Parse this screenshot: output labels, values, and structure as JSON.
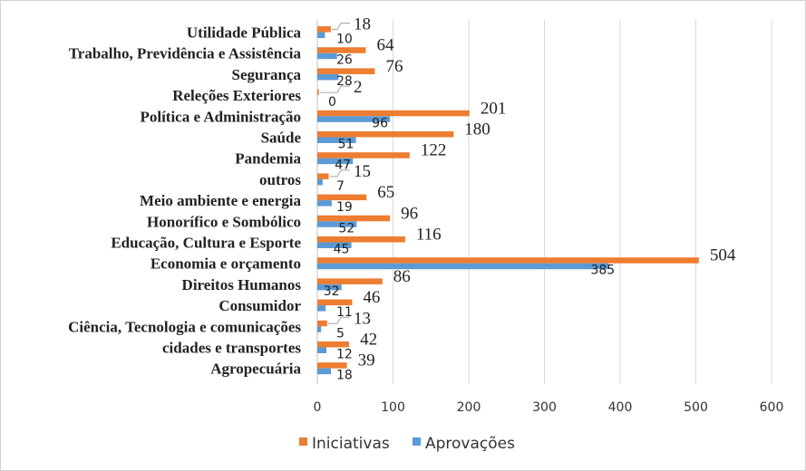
{
  "chart_data": {
    "type": "bar",
    "orientation": "horizontal",
    "categories": [
      "Utilidade Pública",
      "Trabalho, Previdência e Assistência",
      "Segurança",
      "Releções Exteriores",
      "Política e Administração",
      "Saúde",
      "Pandemia",
      "outros",
      "Meio ambiente e energia",
      "Honorífico e Sombólico",
      "Educação, Cultura e Esporte",
      "Economia e orçamento",
      "Direitos Humanos",
      "Consumidor",
      "Ciência, Tecnologia e comunicações",
      "cidades e transportes",
      "Agropecuária"
    ],
    "series": [
      {
        "name": "Iniciativas",
        "color": "#ED7D31",
        "values": [
          18,
          64,
          76,
          2,
          201,
          180,
          122,
          15,
          65,
          96,
          116,
          504,
          86,
          46,
          13,
          42,
          39
        ]
      },
      {
        "name": "Aprovações",
        "color": "#5B9BD5",
        "values": [
          10,
          26,
          28,
          0,
          96,
          51,
          47,
          7,
          19,
          52,
          45,
          385,
          32,
          11,
          5,
          12,
          18
        ]
      }
    ],
    "x_ticks": [
      "0",
      "100",
      "200",
      "300",
      "400",
      "500",
      "600"
    ],
    "xlim": [
      0,
      600
    ],
    "grid": "vertical",
    "legend_position": "bottom",
    "title": "",
    "xlabel": "",
    "ylabel": ""
  }
}
